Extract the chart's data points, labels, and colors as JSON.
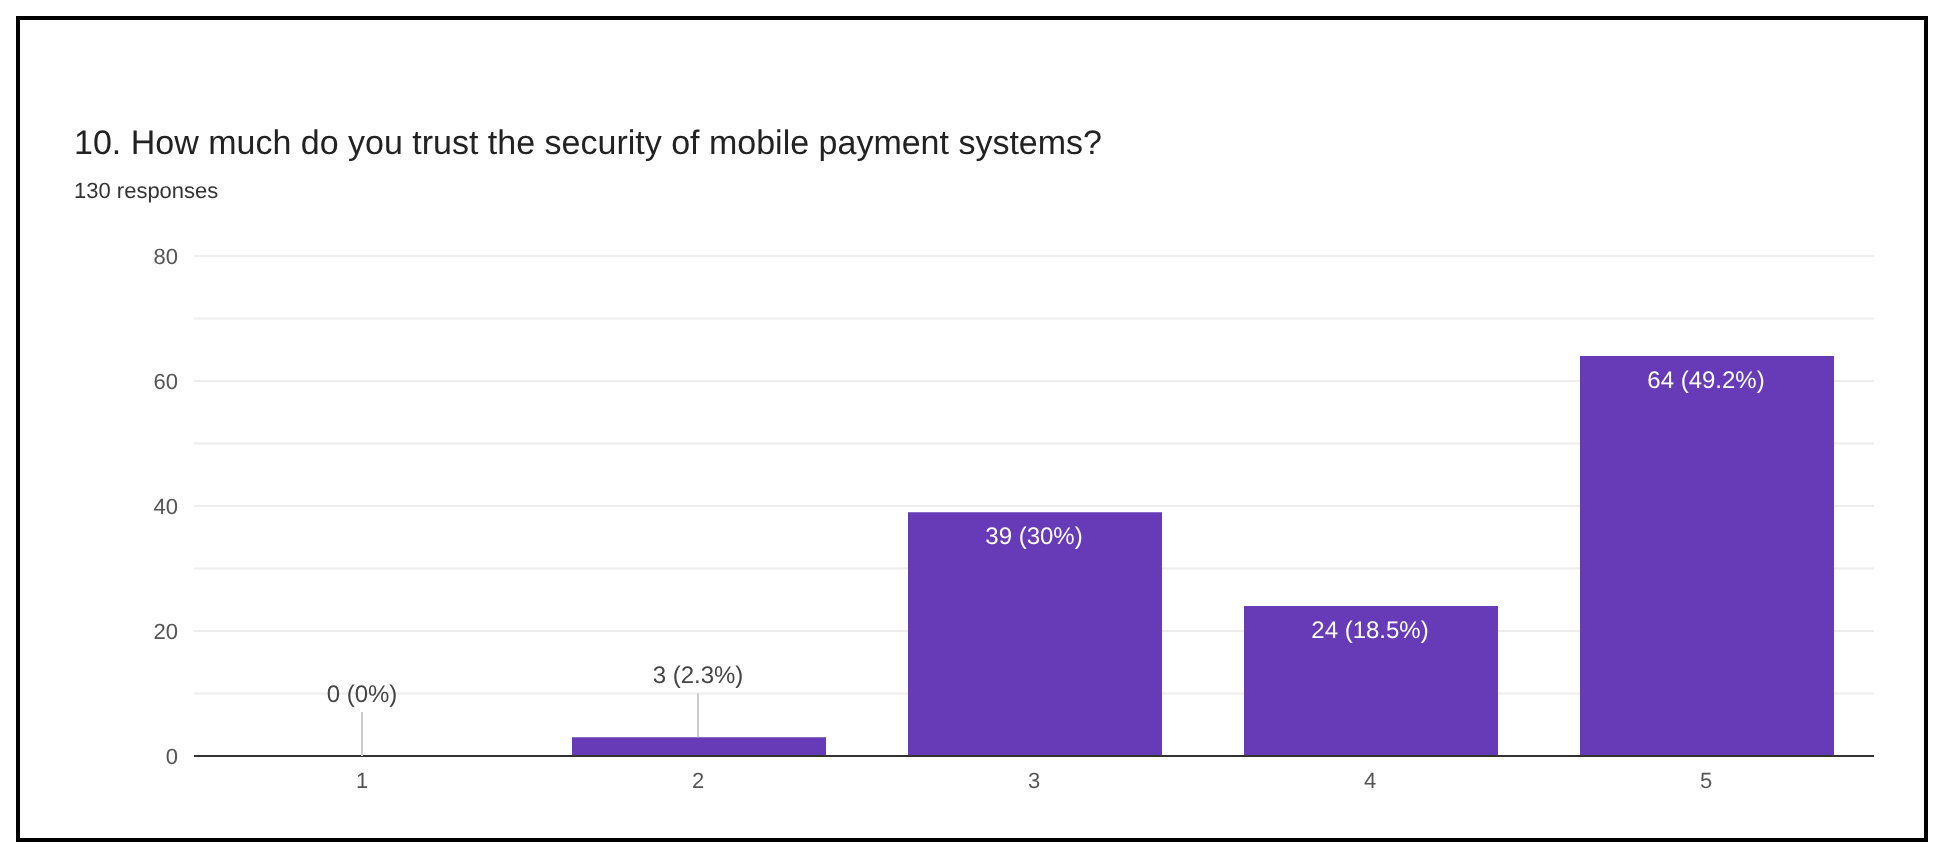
{
  "chart_data": {
    "type": "bar",
    "title": "10. How much do you trust the security of mobile payment systems?",
    "subtitle": "130 responses",
    "categories": [
      "1",
      "2",
      "3",
      "4",
      "5"
    ],
    "values": [
      0,
      3,
      39,
      24,
      64
    ],
    "value_labels": [
      "0 (0%)",
      "3 (2.3%)",
      "39 (30%)",
      "24 (18.5%)",
      "64 (49.2%)"
    ],
    "color": "#673ab7",
    "ylim": [
      0,
      80
    ],
    "yticks": [
      0,
      {
        "value": 10,
        "label": null
      },
      20,
      {
        "value": 30,
        "label": null
      },
      40,
      {
        "value": 50,
        "label": null
      },
      60,
      {
        "value": 70,
        "label": null
      },
      80
    ],
    "grid": "y"
  }
}
